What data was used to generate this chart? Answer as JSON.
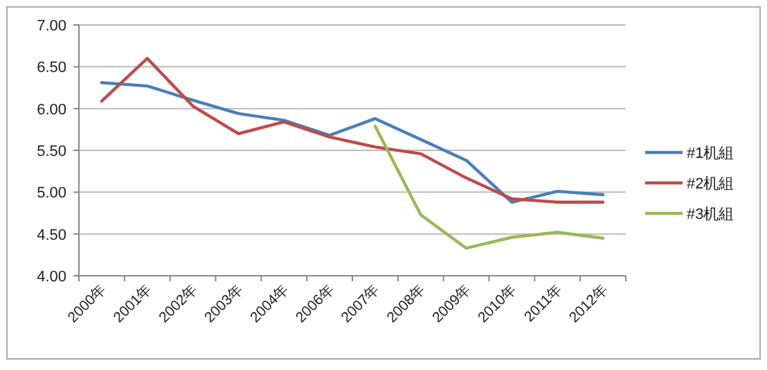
{
  "chart_data": {
    "type": "line",
    "categories": [
      "2000年",
      "2001年",
      "2002年",
      "2003年",
      "2004年",
      "2006年",
      "2007年",
      "2008年",
      "2009年",
      "2010年",
      "2011年",
      "2012年"
    ],
    "series": [
      {
        "name": "#1机組",
        "color": "#4a7ebb",
        "values": [
          6.31,
          6.27,
          6.1,
          5.94,
          5.86,
          5.68,
          5.88,
          5.63,
          5.38,
          4.88,
          5.01,
          4.97
        ]
      },
      {
        "name": "#2机組",
        "color": "#be4b48",
        "values": [
          6.09,
          6.6,
          6.03,
          5.7,
          5.84,
          5.66,
          5.54,
          5.46,
          5.17,
          4.92,
          4.88,
          4.88
        ]
      },
      {
        "name": "#3机組",
        "color": "#98b954",
        "values": [
          null,
          null,
          null,
          null,
          null,
          null,
          5.79,
          4.73,
          4.33,
          4.46,
          4.52,
          4.45
        ]
      }
    ],
    "ylim": [
      4,
      7
    ],
    "yticks": [
      {
        "value": 4,
        "label": "4.00"
      },
      {
        "value": 4.5,
        "label": "4.50"
      },
      {
        "value": 5,
        "label": "5.00"
      },
      {
        "value": 5.5,
        "label": "5.50"
      },
      {
        "value": 6,
        "label": "6.00"
      },
      {
        "value": 6.5,
        "label": "6.50"
      },
      {
        "value": 7,
        "label": "7.00"
      }
    ],
    "grid": "y",
    "legend": "right",
    "marker": "none"
  }
}
